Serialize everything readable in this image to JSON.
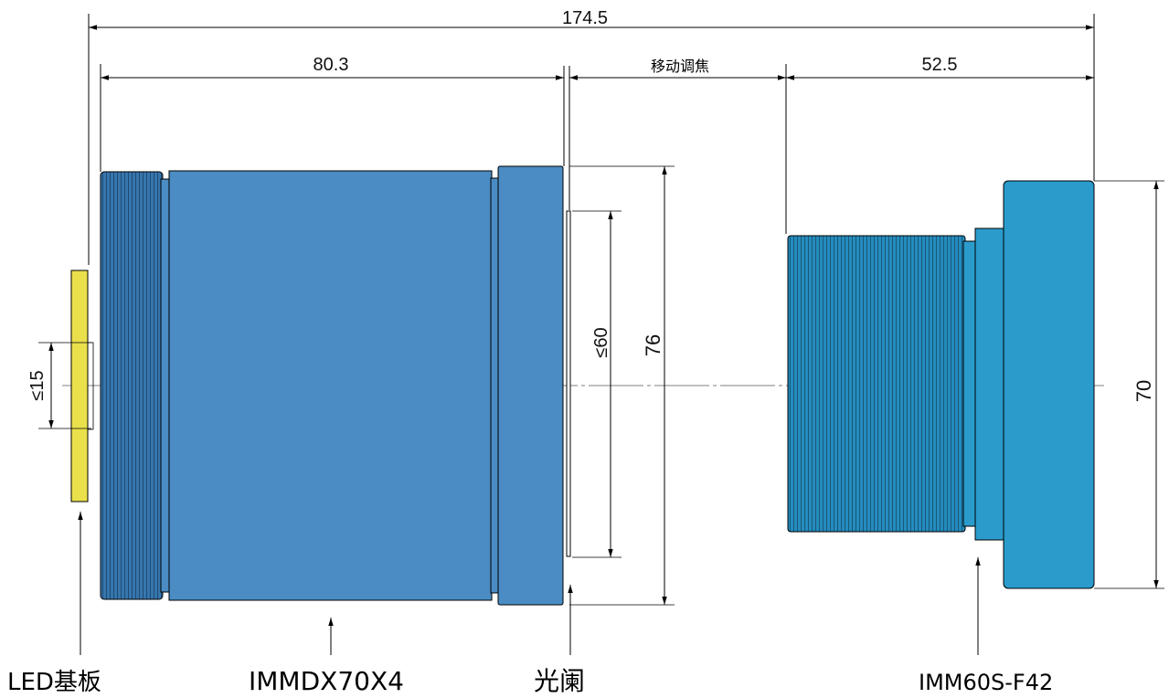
{
  "dimensions": {
    "total_length": "174.5",
    "lens_length": "80.3",
    "focus_travel": "移动调焦",
    "camera_lens_length": "52.5",
    "led_height": "≤15",
    "aperture_height": "≤60",
    "lens_diameter": "76",
    "camera_diameter": "70"
  },
  "callouts": {
    "led_board": "LED基板",
    "lens_model": "IMMDX70X4",
    "aperture": "光阑",
    "camera_lens_model": "IMM60S-F42"
  },
  "colors": {
    "led_board": "#E9E04B",
    "lens_body": "#4A8CC3",
    "lens_thread": "#2F6FA8",
    "camera_body": "#2A9BCB",
    "camera_thread": "#2388B8",
    "outline": "#000000"
  }
}
